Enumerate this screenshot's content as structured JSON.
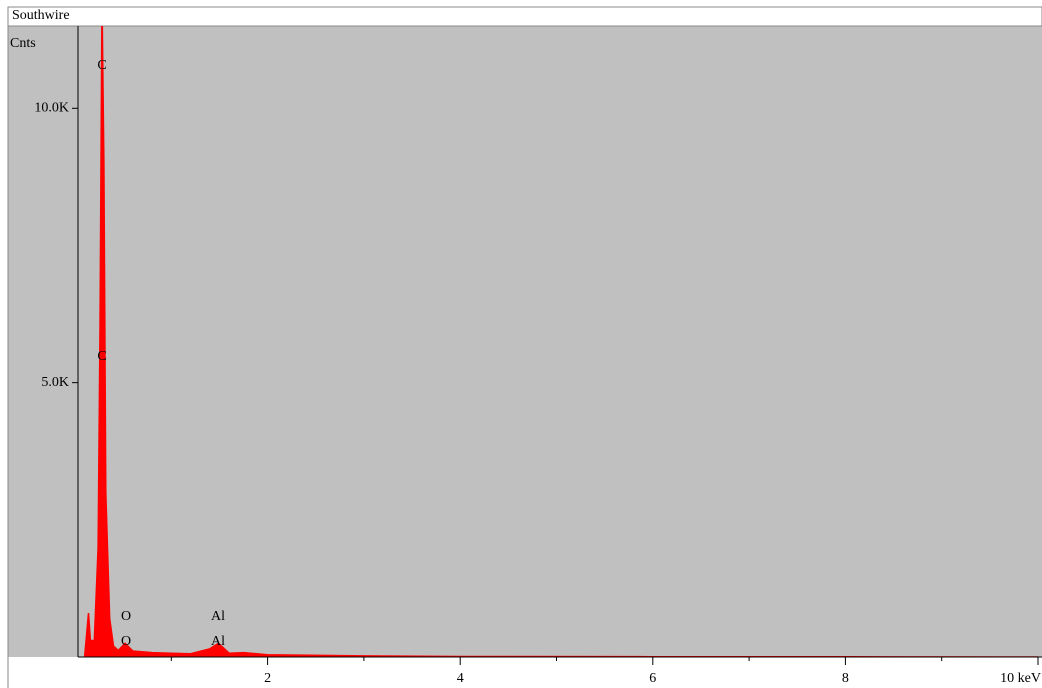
{
  "chart_data": {
    "type": "area",
    "title": "Southwire",
    "y_label": "Cnts",
    "x": [
      0.1,
      0.14,
      0.16,
      0.2,
      0.24,
      0.26,
      0.28,
      0.3,
      0.32,
      0.36,
      0.4,
      0.45,
      0.52,
      0.6,
      0.8,
      1.0,
      1.2,
      1.4,
      1.49,
      1.6,
      1.75,
      2.0,
      3.0,
      4.0,
      6.0,
      8.0,
      10.0
    ],
    "series": [
      {
        "name": "Spectrum",
        "color": "#ff0000",
        "values": [
          0,
          800,
          300,
          300,
          2000,
          6000,
          12000,
          9000,
          3000,
          700,
          200,
          120,
          250,
          110,
          80,
          70,
          60,
          150,
          250,
          70,
          80,
          40,
          20,
          10,
          5,
          3,
          0
        ]
      }
    ],
    "annotations": [
      "C",
      "C",
      "O",
      "O",
      "Al",
      "Al"
    ],
    "xlim": [
      0,
      10
    ],
    "xticks": [
      2,
      4,
      6,
      8,
      {
        "value": 10,
        "label": "10 keV"
      }
    ],
    "xminorticks": [
      1,
      3,
      5,
      7,
      9
    ],
    "ylim": [
      0,
      11500
    ],
    "yticks": [
      {
        "value": 5000,
        "label": "5.0K"
      },
      {
        "value": 10000,
        "label": "10.0K"
      }
    ],
    "background": "#c0c0c0"
  }
}
